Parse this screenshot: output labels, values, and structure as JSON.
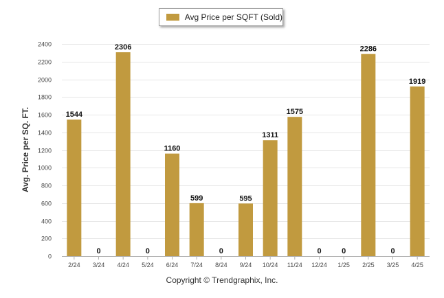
{
  "chart_data": {
    "type": "bar",
    "categories": [
      "2/24",
      "3/24",
      "4/24",
      "5/24",
      "6/24",
      "7/24",
      "8/24",
      "9/24",
      "10/24",
      "11/24",
      "12/24",
      "1/25",
      "2/25",
      "3/25",
      "4/25"
    ],
    "series": [
      {
        "name": "Avg Price per SQFT (Sold)",
        "values": [
          1544,
          0,
          2306,
          0,
          1160,
          599,
          0,
          595,
          1311,
          1575,
          0,
          0,
          2286,
          0,
          1919
        ]
      }
    ],
    "ylabel": "Avg. Price per SQ. FT.",
    "xlabel": "",
    "ylim": [
      0,
      2400
    ],
    "yticks": [
      0,
      200,
      400,
      600,
      800,
      1000,
      1200,
      1400,
      1600,
      1800,
      2000,
      2200,
      2400
    ],
    "grid": true,
    "legend_position": "top-center",
    "bar_color": "#C19A3F",
    "data_labels": true
  },
  "footer": {
    "copyright": "Copyright © Trendgraphix, Inc."
  }
}
